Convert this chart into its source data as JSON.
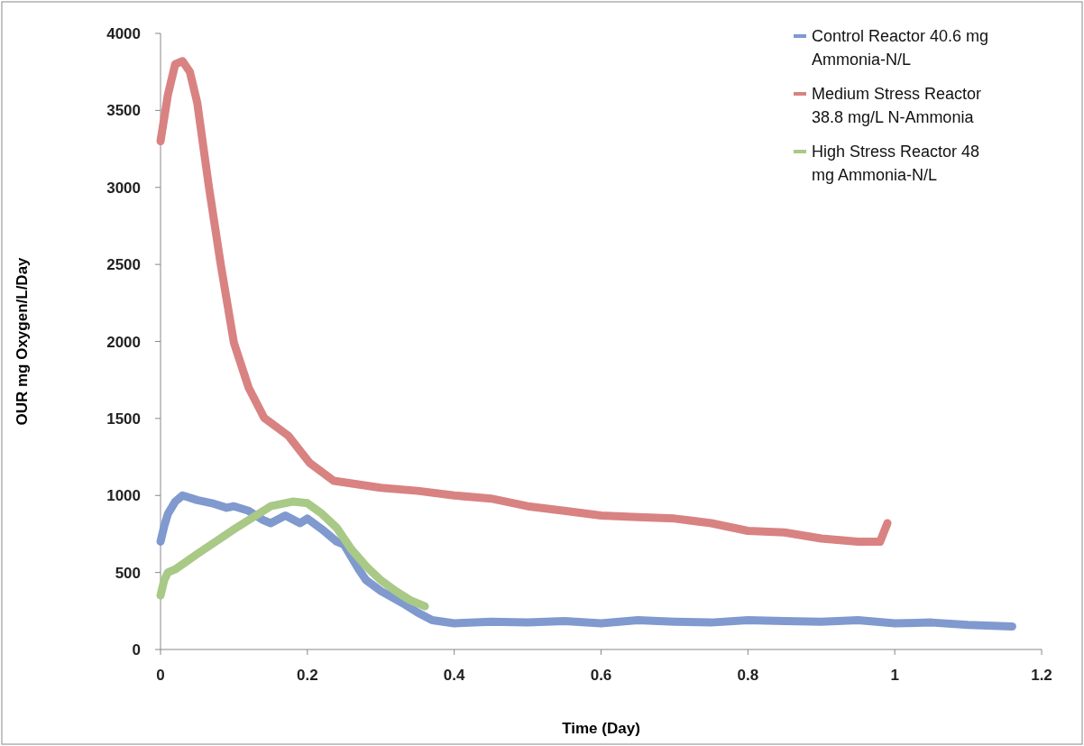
{
  "chart_data": {
    "type": "line",
    "xlabel": "Time (Day)",
    "ylabel": "OUR mg Oxygen/L/Day",
    "xlim": [
      0,
      1.2
    ],
    "xticks": [
      0,
      0.2,
      0.4,
      0.6,
      0.8,
      1,
      1.2
    ],
    "ylim": [
      0,
      4000
    ],
    "yticks": [
      0,
      500,
      1000,
      1500,
      2000,
      2500,
      3000,
      3500,
      4000
    ],
    "legend": "top right",
    "marker": "none",
    "series": [
      {
        "name": "Control Reactor 40.6 mg Ammonia-N/L",
        "color": "#8099cf",
        "x": [
          0,
          0.005,
          0.01,
          0.02,
          0.03,
          0.05,
          0.07,
          0.09,
          0.1,
          0.12,
          0.14,
          0.15,
          0.17,
          0.19,
          0.2,
          0.22,
          0.24,
          0.25,
          0.27,
          0.28,
          0.3,
          0.33,
          0.35,
          0.37,
          0.4,
          0.45,
          0.5,
          0.55,
          0.6,
          0.65,
          0.7,
          0.75,
          0.8,
          0.85,
          0.9,
          0.95,
          1,
          1.05,
          1.1,
          1.16
        ],
        "values": [
          700,
          800,
          880,
          960,
          1000,
          970,
          950,
          920,
          930,
          900,
          840,
          820,
          870,
          820,
          850,
          780,
          700,
          680,
          520,
          450,
          380,
          300,
          240,
          190,
          170,
          180,
          175,
          185,
          170,
          190,
          180,
          175,
          190,
          185,
          180,
          190,
          170,
          175,
          160,
          150
        ]
      },
      {
        "name": "Medium Stress Reactor 38.8 mg/L N-Ammonia",
        "color": "#d98282",
        "x": [
          0,
          0.01,
          0.02,
          0.03,
          0.04,
          0.05,
          0.066,
          0.082,
          0.1,
          0.12,
          0.141,
          0.174,
          0.203,
          0.236,
          0.3,
          0.35,
          0.4,
          0.45,
          0.5,
          0.55,
          0.6,
          0.65,
          0.7,
          0.75,
          0.8,
          0.85,
          0.9,
          0.95,
          0.98,
          0.99
        ],
        "values": [
          3300,
          3600,
          3800,
          3820,
          3750,
          3550,
          3000,
          2500,
          1990,
          1700,
          1505,
          1388,
          1212,
          1095,
          1050,
          1030,
          1000,
          980,
          930,
          900,
          870,
          860,
          850,
          820,
          770,
          760,
          720,
          700,
          700,
          820
        ]
      },
      {
        "name": "High Stress Reactor 48 mg Ammonia-N/L",
        "color": "#a9c987",
        "x": [
          0,
          0.005,
          0.01,
          0.02,
          0.05,
          0.1,
          0.15,
          0.18,
          0.2,
          0.22,
          0.24,
          0.26,
          0.28,
          0.3,
          0.32,
          0.34,
          0.36
        ],
        "values": [
          350,
          450,
          500,
          520,
          620,
          780,
          930,
          960,
          950,
          880,
          790,
          650,
          540,
          450,
          380,
          320,
          280
        ]
      }
    ]
  }
}
